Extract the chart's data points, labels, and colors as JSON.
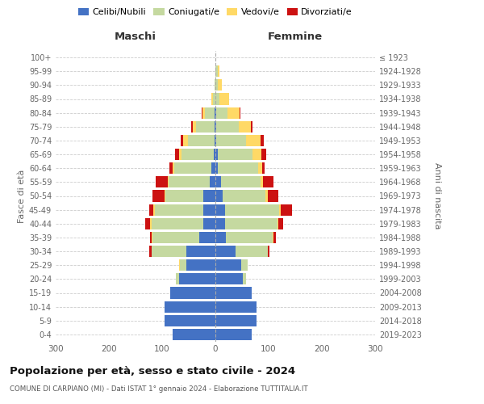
{
  "age_groups": [
    "100+",
    "95-99",
    "90-94",
    "85-89",
    "80-84",
    "75-79",
    "70-74",
    "65-69",
    "60-64",
    "55-59",
    "50-54",
    "45-49",
    "40-44",
    "35-39",
    "30-34",
    "25-29",
    "20-24",
    "15-19",
    "10-14",
    "5-9",
    "0-4"
  ],
  "birth_years": [
    "≤ 1923",
    "1924-1928",
    "1929-1933",
    "1934-1938",
    "1939-1943",
    "1944-1948",
    "1949-1953",
    "1954-1958",
    "1959-1963",
    "1964-1968",
    "1969-1973",
    "1974-1978",
    "1979-1983",
    "1984-1988",
    "1989-1993",
    "1994-1998",
    "1999-2003",
    "2004-2008",
    "2009-2013",
    "2014-2018",
    "2019-2023"
  ],
  "males": {
    "celibi": [
      0,
      0,
      0,
      0,
      1,
      1,
      2,
      3,
      8,
      10,
      22,
      22,
      22,
      30,
      55,
      55,
      68,
      85,
      95,
      95,
      80
    ],
    "coniugati": [
      0,
      0,
      2,
      5,
      18,
      35,
      50,
      60,
      70,
      78,
      72,
      92,
      98,
      88,
      65,
      12,
      6,
      0,
      0,
      0,
      0
    ],
    "vedovi": [
      0,
      0,
      0,
      2,
      5,
      6,
      8,
      5,
      3,
      2,
      2,
      2,
      2,
      1,
      0,
      1,
      0,
      0,
      0,
      0,
      0
    ],
    "divorziati": [
      0,
      0,
      0,
      0,
      2,
      4,
      5,
      8,
      5,
      22,
      22,
      8,
      10,
      4,
      4,
      0,
      0,
      0,
      0,
      0,
      0
    ]
  },
  "females": {
    "nubili": [
      0,
      0,
      0,
      0,
      1,
      2,
      2,
      4,
      5,
      10,
      14,
      18,
      18,
      20,
      38,
      48,
      52,
      68,
      78,
      78,
      68
    ],
    "coniugate": [
      0,
      4,
      5,
      8,
      22,
      42,
      55,
      65,
      75,
      75,
      80,
      102,
      98,
      88,
      60,
      12,
      6,
      0,
      0,
      0,
      0
    ],
    "vedove": [
      0,
      4,
      7,
      18,
      22,
      22,
      28,
      18,
      8,
      4,
      4,
      2,
      2,
      1,
      0,
      1,
      0,
      0,
      0,
      0,
      0
    ],
    "divorziate": [
      0,
      0,
      0,
      0,
      2,
      4,
      6,
      8,
      5,
      20,
      20,
      22,
      10,
      4,
      4,
      0,
      0,
      0,
      0,
      0,
      0
    ]
  },
  "colors": {
    "celibi_nubili": "#4472c4",
    "coniugati": "#c5d9a0",
    "vedovi": "#ffd966",
    "divorziati": "#cc1111"
  },
  "xlim": 300,
  "title": "Popolazione per età, sesso e stato civile - 2024",
  "subtitle": "COMUNE DI CARPIANO (MI) - Dati ISTAT 1° gennaio 2024 - Elaborazione TUTTITALIA.IT",
  "xlabel_left": "Maschi",
  "xlabel_right": "Femmine",
  "ylabel_left": "Fasce di età",
  "ylabel_right": "Anni di nascita",
  "bg_color": "#ffffff",
  "grid_color": "#cccccc"
}
